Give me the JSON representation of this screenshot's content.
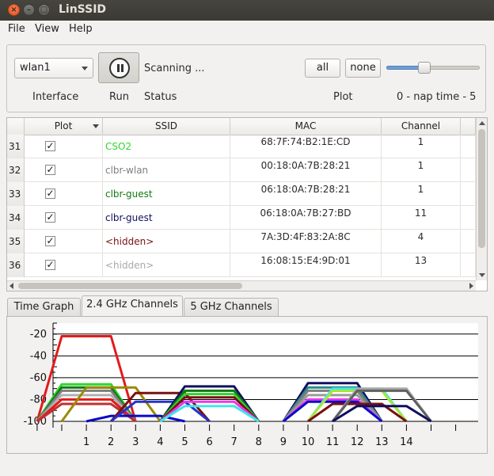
{
  "window": {
    "title": "LinSSID"
  },
  "menu": [
    "File",
    "View",
    "Help"
  ],
  "controls": {
    "interface_value": "wlan1",
    "interface_label": "Interface",
    "run_label": "Run",
    "status_text": "Scanning ...",
    "status_label": "Status",
    "all_button": "all",
    "none_button": "none",
    "plot_label": "Plot",
    "nap_label": "0 - nap time - 5",
    "nap_value": 2
  },
  "table": {
    "columns": [
      "Plot",
      "SSID",
      "MAC",
      "Channel"
    ],
    "rows": [
      {
        "num": "31",
        "checked": "✓",
        "ssid": "CSO2",
        "mac": "68:7F:74:B2:1E:CD",
        "channel": "1",
        "color": "#2fd62f"
      },
      {
        "num": "32",
        "checked": "✓",
        "ssid": "clbr-wlan",
        "mac": "00:18:0A:7B:28:21",
        "channel": "1",
        "color": "#7f7f7f"
      },
      {
        "num": "33",
        "checked": "✓",
        "ssid": "clbr-guest",
        "mac": "06:18:0A:7B:28:21",
        "channel": "1",
        "color": "#117a11"
      },
      {
        "num": "34",
        "checked": "✓",
        "ssid": "clbr-guest",
        "mac": "06:18:0A:7B:27:BD",
        "channel": "11",
        "color": "#101060"
      },
      {
        "num": "35",
        "checked": "✓",
        "ssid": "<hidden>",
        "mac": "7A:3D:4F:83:2A:8C",
        "channel": "4",
        "color": "#7a1010"
      },
      {
        "num": "36",
        "checked": "✓",
        "ssid": "<hidden>",
        "mac": "16:08:15:E4:9D:01",
        "channel": "13",
        "color": "#a8a8a8"
      }
    ]
  },
  "tabs": [
    "Time Graph",
    "2.4 GHz Channels",
    "5 GHz Channels"
  ],
  "chart_data": {
    "type": "area",
    "xlim": [
      -1,
      16
    ],
    "ylim": [
      -100,
      -10
    ],
    "yticks": [
      -20,
      -40,
      -60,
      -80,
      -100
    ],
    "xticks": [
      1,
      2,
      3,
      4,
      5,
      6,
      7,
      8,
      9,
      10,
      11,
      12,
      13,
      14
    ],
    "grid": "horizontal",
    "series": [
      {
        "color": "#e31a1c",
        "channel": 1,
        "signal": -22
      },
      {
        "color": "#2fd62f",
        "channel": 1,
        "signal": -66
      },
      {
        "color": "#117a11",
        "channel": 1,
        "signal": -69
      },
      {
        "color": "#7f7f7f",
        "channel": 1,
        "signal": -72
      },
      {
        "color": "#b0b0b0",
        "channel": 1,
        "signal": -76
      },
      {
        "color": "#e31a1c",
        "channel": 1,
        "signal": -80
      },
      {
        "color": "#c03030",
        "channel": 1,
        "signal": -84
      },
      {
        "color": "#9a8a00",
        "channel": 2,
        "signal": -69
      },
      {
        "color": "#0a0ac8",
        "channel": 3,
        "signal": -95
      },
      {
        "color": "#7a1010",
        "channel": 4,
        "signal": -74
      },
      {
        "color": "#2233cc",
        "channel": 4,
        "signal": -82
      },
      {
        "color": "#101060",
        "channel": 6,
        "signal": -68
      },
      {
        "color": "#117a11",
        "channel": 6,
        "signal": -72
      },
      {
        "color": "#2fd62f",
        "channel": 6,
        "signal": -75
      },
      {
        "color": "#7a1010",
        "channel": 6,
        "signal": -78
      },
      {
        "color": "#e838e8",
        "channel": 6,
        "signal": -82
      },
      {
        "color": "#40e8e8",
        "channel": 6,
        "signal": -86
      },
      {
        "color": "#101060",
        "channel": 11,
        "signal": -65
      },
      {
        "color": "#2a8a8a",
        "channel": 11,
        "signal": -69
      },
      {
        "color": "#7f7f7f",
        "channel": 11,
        "signal": -72
      },
      {
        "color": "#9a9a9a",
        "channel": 11,
        "signal": -76
      },
      {
        "color": "#e838e8",
        "channel": 11,
        "signal": -80
      },
      {
        "color": "#0a0ac8",
        "channel": 11,
        "signal": -82
      },
      {
        "color": "#40e8e8",
        "channel": 12,
        "signal": -70
      },
      {
        "color": "#a8e838",
        "channel": 12,
        "signal": -72
      },
      {
        "color": "#7a1010",
        "channel": 12,
        "signal": -84
      },
      {
        "color": "#a8a8a8",
        "channel": 13,
        "signal": -70
      },
      {
        "color": "#606060",
        "channel": 13,
        "signal": -72
      },
      {
        "color": "#101060",
        "channel": 13,
        "signal": -86
      }
    ]
  }
}
